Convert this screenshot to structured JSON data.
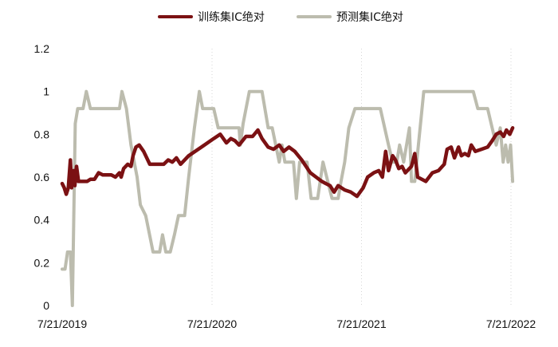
{
  "chart_data": {
    "type": "line",
    "title": "",
    "xlabel": "",
    "ylabel": "",
    "ylim": [
      0,
      1.2
    ],
    "yticks": [
      "0",
      "0.2",
      "0.4",
      "0.6",
      "0.8",
      "1",
      "1.2"
    ],
    "xticks": [
      "7/21/2019",
      "7/21/2020",
      "7/21/2021",
      "7/21/2022"
    ],
    "grid": "vertical dotted lines at year ticks",
    "legend_position": "top",
    "series": [
      {
        "name": "训练集IC绝对",
        "color": "#7b1113",
        "points": [
          [
            "2019-07-21",
            0.57
          ],
          [
            "2019-07-26",
            0.55
          ],
          [
            "2019-07-31",
            0.52
          ],
          [
            "2019-08-05",
            0.55
          ],
          [
            "2019-08-10",
            0.68
          ],
          [
            "2019-08-13",
            0.55
          ],
          [
            "2019-08-18",
            0.63
          ],
          [
            "2019-08-21",
            0.56
          ],
          [
            "2019-08-25",
            0.65
          ],
          [
            "2019-08-30",
            0.58
          ],
          [
            "2019-09-20",
            0.58
          ],
          [
            "2019-09-28",
            0.59
          ],
          [
            "2019-10-08",
            0.59
          ],
          [
            "2019-10-18",
            0.62
          ],
          [
            "2019-10-28",
            0.61
          ],
          [
            "2019-11-18",
            0.61
          ],
          [
            "2019-11-28",
            0.6
          ],
          [
            "2019-12-08",
            0.62
          ],
          [
            "2019-12-12",
            0.6
          ],
          [
            "2019-12-18",
            0.64
          ],
          [
            "2019-12-28",
            0.66
          ],
          [
            "2020-01-05",
            0.65
          ],
          [
            "2020-01-10",
            0.7
          ],
          [
            "2020-01-17",
            0.74
          ],
          [
            "2020-01-25",
            0.75
          ],
          [
            "2020-02-05",
            0.72
          ],
          [
            "2020-02-20",
            0.66
          ],
          [
            "2020-03-25",
            0.66
          ],
          [
            "2020-04-05",
            0.68
          ],
          [
            "2020-04-15",
            0.67
          ],
          [
            "2020-04-25",
            0.69
          ],
          [
            "2020-05-05",
            0.66
          ],
          [
            "2020-05-25",
            0.7
          ],
          [
            "2020-06-25",
            0.74
          ],
          [
            "2020-07-25",
            0.78
          ],
          [
            "2020-08-10",
            0.8
          ],
          [
            "2020-08-25",
            0.76
          ],
          [
            "2020-09-05",
            0.78
          ],
          [
            "2020-09-15",
            0.77
          ],
          [
            "2020-09-25",
            0.75
          ],
          [
            "2020-10-12",
            0.79
          ],
          [
            "2020-10-28",
            0.79
          ],
          [
            "2020-11-10",
            0.82
          ],
          [
            "2020-11-20",
            0.78
          ],
          [
            "2020-12-05",
            0.74
          ],
          [
            "2020-12-18",
            0.73
          ],
          [
            "2021-01-01",
            0.75
          ],
          [
            "2021-01-12",
            0.72
          ],
          [
            "2021-01-25",
            0.74
          ],
          [
            "2021-02-08",
            0.72
          ],
          [
            "2021-02-25",
            0.68
          ],
          [
            "2021-03-18",
            0.62
          ],
          [
            "2021-04-01",
            0.6
          ],
          [
            "2021-04-15",
            0.58
          ],
          [
            "2021-04-25",
            0.57
          ],
          [
            "2021-05-05",
            0.56
          ],
          [
            "2021-05-15",
            0.53
          ],
          [
            "2021-05-25",
            0.56
          ],
          [
            "2021-06-10",
            0.54
          ],
          [
            "2021-06-25",
            0.53
          ],
          [
            "2021-07-10",
            0.51
          ],
          [
            "2021-07-25",
            0.55
          ],
          [
            "2021-08-05",
            0.6
          ],
          [
            "2021-08-20",
            0.62
          ],
          [
            "2021-09-01",
            0.63
          ],
          [
            "2021-09-10",
            0.6
          ],
          [
            "2021-09-18",
            0.72
          ],
          [
            "2021-09-25",
            0.63
          ],
          [
            "2021-10-05",
            0.7
          ],
          [
            "2021-10-12",
            0.68
          ],
          [
            "2021-10-20",
            0.64
          ],
          [
            "2021-10-28",
            0.65
          ],
          [
            "2021-11-05",
            0.62
          ],
          [
            "2021-11-20",
            0.65
          ],
          [
            "2021-11-28",
            0.71
          ],
          [
            "2021-12-05",
            0.6
          ],
          [
            "2021-12-25",
            0.58
          ],
          [
            "2022-01-10",
            0.62
          ],
          [
            "2022-01-25",
            0.63
          ],
          [
            "2022-02-08",
            0.66
          ],
          [
            "2022-02-15",
            0.73
          ],
          [
            "2022-02-25",
            0.74
          ],
          [
            "2022-03-05",
            0.69
          ],
          [
            "2022-03-15",
            0.74
          ],
          [
            "2022-03-22",
            0.7
          ],
          [
            "2022-03-30",
            0.71
          ],
          [
            "2022-04-08",
            0.7
          ],
          [
            "2022-04-15",
            0.75
          ],
          [
            "2022-04-25",
            0.72
          ],
          [
            "2022-05-10",
            0.73
          ],
          [
            "2022-05-25",
            0.74
          ],
          [
            "2022-06-05",
            0.77
          ],
          [
            "2022-06-15",
            0.8
          ],
          [
            "2022-06-25",
            0.81
          ],
          [
            "2022-07-03",
            0.79
          ],
          [
            "2022-07-10",
            0.82
          ],
          [
            "2022-07-18",
            0.8
          ],
          [
            "2022-07-25",
            0.83
          ]
        ]
      },
      {
        "name": "预测集IC绝对",
        "color": "#bcbcae",
        "points": [
          [
            "2019-07-21",
            0.17
          ],
          [
            "2019-07-28",
            0.17
          ],
          [
            "2019-08-03",
            0.25
          ],
          [
            "2019-08-10",
            0.25
          ],
          [
            "2019-08-15",
            0.0
          ],
          [
            "2019-08-22",
            0.85
          ],
          [
            "2019-08-28",
            0.92
          ],
          [
            "2019-09-10",
            0.92
          ],
          [
            "2019-09-18",
            1.0
          ],
          [
            "2019-09-28",
            0.92
          ],
          [
            "2019-12-08",
            0.92
          ],
          [
            "2019-12-14",
            1.0
          ],
          [
            "2019-12-25",
            0.92
          ],
          [
            "2020-01-05",
            0.75
          ],
          [
            "2020-01-20",
            0.6
          ],
          [
            "2020-01-28",
            0.47
          ],
          [
            "2020-02-10",
            0.42
          ],
          [
            "2020-02-28",
            0.25
          ],
          [
            "2020-03-15",
            0.25
          ],
          [
            "2020-03-22",
            0.33
          ],
          [
            "2020-03-30",
            0.25
          ],
          [
            "2020-04-10",
            0.25
          ],
          [
            "2020-04-20",
            0.33
          ],
          [
            "2020-04-30",
            0.42
          ],
          [
            "2020-05-15",
            0.42
          ],
          [
            "2020-05-25",
            0.6
          ],
          [
            "2020-06-08",
            0.83
          ],
          [
            "2020-06-20",
            1.0
          ],
          [
            "2020-06-28",
            0.92
          ],
          [
            "2020-07-25",
            0.92
          ],
          [
            "2020-08-05",
            0.83
          ],
          [
            "2020-09-25",
            0.83
          ],
          [
            "2020-09-28",
            0.75
          ],
          [
            "2020-10-05",
            0.85
          ],
          [
            "2020-10-20",
            1.0
          ],
          [
            "2020-11-20",
            1.0
          ],
          [
            "2020-12-05",
            0.83
          ],
          [
            "2020-12-15",
            0.83
          ],
          [
            "2021-01-01",
            0.67
          ],
          [
            "2021-01-08",
            0.75
          ],
          [
            "2021-01-15",
            0.67
          ],
          [
            "2021-02-05",
            0.67
          ],
          [
            "2021-02-12",
            0.5
          ],
          [
            "2021-02-20",
            0.67
          ],
          [
            "2021-03-10",
            0.67
          ],
          [
            "2021-03-20",
            0.5
          ],
          [
            "2021-04-05",
            0.5
          ],
          [
            "2021-04-18",
            0.67
          ],
          [
            "2021-05-10",
            0.5
          ],
          [
            "2021-05-25",
            0.5
          ],
          [
            "2021-06-01",
            0.58
          ],
          [
            "2021-06-10",
            0.67
          ],
          [
            "2021-06-20",
            0.83
          ],
          [
            "2021-07-05",
            0.92
          ],
          [
            "2021-09-05",
            0.92
          ],
          [
            "2021-09-25",
            0.75
          ],
          [
            "2021-10-05",
            0.67
          ],
          [
            "2021-10-15",
            0.67
          ],
          [
            "2021-10-22",
            0.75
          ],
          [
            "2021-11-01",
            0.67
          ],
          [
            "2021-11-08",
            0.75
          ],
          [
            "2021-11-15",
            0.83
          ],
          [
            "2021-11-20",
            0.58
          ],
          [
            "2021-11-28",
            0.58
          ],
          [
            "2021-12-20",
            1.0
          ],
          [
            "2022-04-20",
            1.0
          ],
          [
            "2022-05-01",
            0.92
          ],
          [
            "2022-05-25",
            0.92
          ],
          [
            "2022-06-05",
            0.83
          ],
          [
            "2022-06-15",
            0.75
          ],
          [
            "2022-06-25",
            0.83
          ],
          [
            "2022-07-02",
            0.67
          ],
          [
            "2022-07-08",
            0.75
          ],
          [
            "2022-07-14",
            0.67
          ],
          [
            "2022-07-20",
            0.75
          ],
          [
            "2022-07-25",
            0.58
          ]
        ]
      }
    ]
  }
}
